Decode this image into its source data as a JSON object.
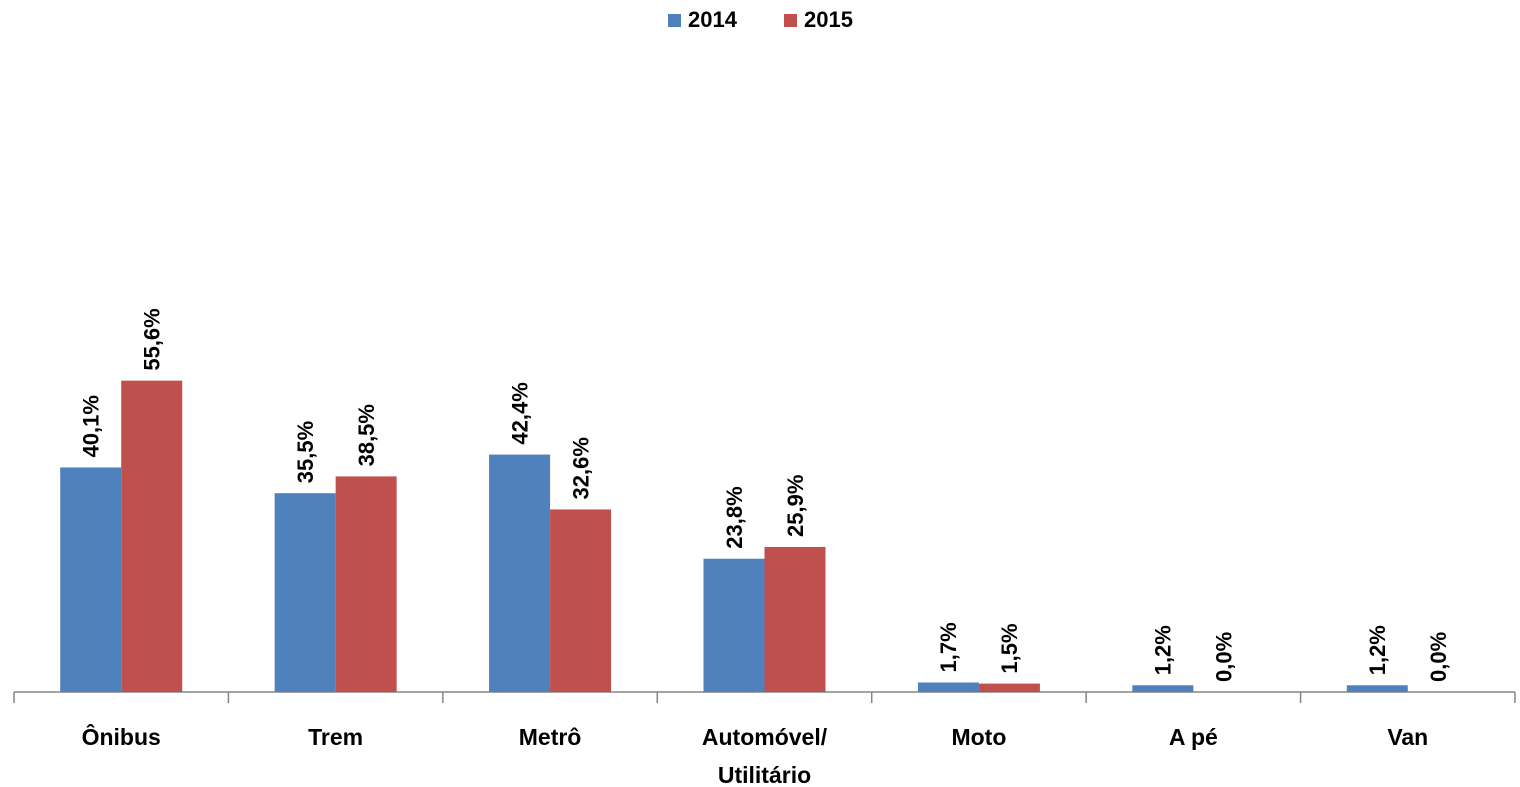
{
  "chart_data": {
    "type": "bar",
    "categories": [
      "Ônibus",
      "Trem",
      "Metrô",
      "Automóvel/ Utilitário",
      "Moto",
      "A pé",
      "Van"
    ],
    "series": [
      {
        "name": "2014",
        "color": "#4f81bd",
        "values": [
          40.1,
          35.5,
          42.4,
          23.8,
          1.7,
          1.2,
          1.2
        ],
        "value_labels": [
          "40,1%",
          "35,5%",
          "42,4%",
          "23,8%",
          "1,7%",
          "1,2%",
          "1,2%"
        ]
      },
      {
        "name": "2015",
        "color": "#c0504d",
        "values": [
          55.6,
          38.5,
          32.6,
          25.9,
          1.5,
          0.0,
          0.0
        ],
        "value_labels": [
          "55,6%",
          "38,5%",
          "32,6%",
          "25,9%",
          "1,5%",
          "0,0%",
          "0,0%"
        ]
      }
    ],
    "legend": "top"
  }
}
